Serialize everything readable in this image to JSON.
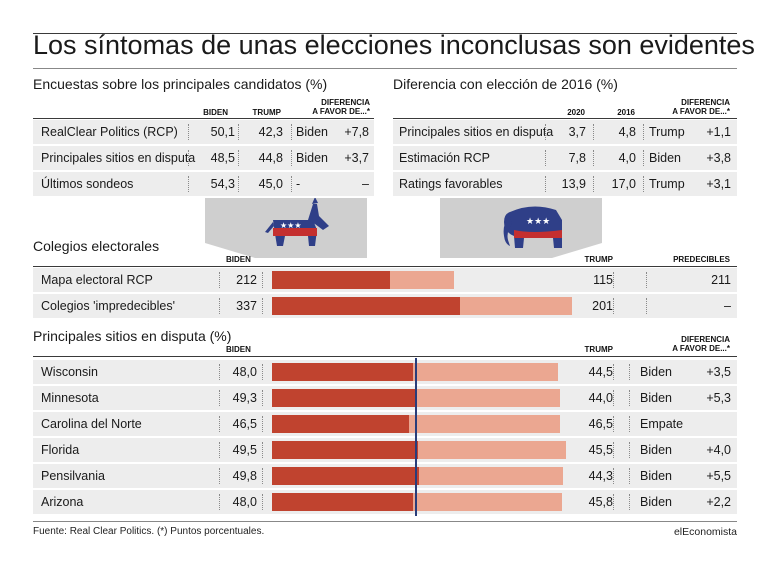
{
  "title": "Los síntomas de unas elecciones inconclusas son evidentes",
  "polls": {
    "section": "Encuestas sobre los principales candidatos (%)",
    "headers": {
      "biden": "BIDEN",
      "trump": "TRUMP",
      "diff1": "DIFERENCIA",
      "diff2": "A FAVOR DE...*"
    },
    "rows": [
      {
        "label": "RealClear Politics (RCP)",
        "biden": "50,1",
        "trump": "42,3",
        "fav": "Biden",
        "diff": "+7,8"
      },
      {
        "label": "Principales sitios en disputa",
        "biden": "48,5",
        "trump": "44,8",
        "fav": "Biden",
        "diff": "+3,7"
      },
      {
        "label": "Últimos sondeos",
        "biden": "54,3",
        "trump": "45,0",
        "fav": "-",
        "diff": "–"
      }
    ]
  },
  "vs2016": {
    "section": "Diferencia con elección de 2016 (%)",
    "headers": {
      "y2020": "2020",
      "y2016": "2016",
      "diff1": "DIFERENCIA",
      "diff2": "A FAVOR DE...*"
    },
    "rows": [
      {
        "label": "Principales sitios en disputa",
        "y2020": "3,7",
        "y2016": "4,8",
        "fav": "Trump",
        "diff": "+1,1"
      },
      {
        "label": "Estimación RCP",
        "y2020": "7,8",
        "y2016": "4,0",
        "fav": "Biden",
        "diff": "+3,8"
      },
      {
        "label": "Ratings favorables",
        "y2020": "13,9",
        "y2016": "17,0",
        "fav": "Trump",
        "diff": "+3,1"
      }
    ]
  },
  "electoral": {
    "section": "Colegios electorales",
    "headers": {
      "biden": "BIDEN",
      "trump": "TRUMP",
      "pred": "PREDECIBLES"
    },
    "rows": [
      {
        "label": "Mapa electoral RCP",
        "biden": "212",
        "trump": "115",
        "pred": "211"
      },
      {
        "label": "Colegios 'impredecibles'",
        "biden": "337",
        "trump": "201",
        "pred": "–"
      }
    ]
  },
  "states": {
    "section": "Principales sitios en disputa (%)",
    "headers": {
      "biden": "BIDEN",
      "trump": "TRUMP",
      "diff1": "DIFERENCIA",
      "diff2": "A FAVOR DE...*"
    },
    "rows": [
      {
        "label": "Wisconsin",
        "biden": "48,0",
        "trump": "44,5",
        "fav": "Biden",
        "diff": "+3,5"
      },
      {
        "label": "Minnesota",
        "biden": "49,3",
        "trump": "44,0",
        "fav": "Biden",
        "diff": "+5,3"
      },
      {
        "label": "Carolina del Norte",
        "biden": "46,5",
        "trump": "46,5",
        "fav": "Empate",
        "diff": ""
      },
      {
        "label": "Florida",
        "biden": "49,5",
        "trump": "45,5",
        "fav": "Biden",
        "diff": "+4,0"
      },
      {
        "label": "Pensilvania",
        "biden": "49,8",
        "trump": "44,3",
        "fav": "Biden",
        "diff": "+5,5"
      },
      {
        "label": "Arizona",
        "biden": "48,0",
        "trump": "45,8",
        "fav": "Biden",
        "diff": "+2,2"
      }
    ]
  },
  "footer": {
    "source": "Fuente: Real Clear Politics. (*) Puntos porcentuales.",
    "brand": "elEconomista"
  },
  "colors": {
    "biden": "#c0432f",
    "trump": "#eba791",
    "midline": "#283d7a",
    "row": "#ededed"
  },
  "icons": {
    "donkey": "democrat-donkey-icon",
    "elephant": "republican-elephant-icon"
  },
  "chart_data": [
    {
      "type": "bar",
      "categories": [
        "Mapa electoral RCP",
        "Colegios 'impredecibles'"
      ],
      "series": [
        {
          "name": "BIDEN",
          "values": [
            212,
            337
          ]
        },
        {
          "name": "TRUMP",
          "values": [
            115,
            201
          ]
        }
      ]
    },
    {
      "type": "bar",
      "categories": [
        "Wisconsin",
        "Minnesota",
        "Carolina del Norte",
        "Florida",
        "Pensilvania",
        "Arizona"
      ],
      "series": [
        {
          "name": "BIDEN",
          "values": [
            48.0,
            49.3,
            46.5,
            49.5,
            49.8,
            48.0
          ]
        },
        {
          "name": "TRUMP",
          "values": [
            44.5,
            44.0,
            46.5,
            45.5,
            44.3,
            45.8
          ]
        }
      ]
    }
  ]
}
